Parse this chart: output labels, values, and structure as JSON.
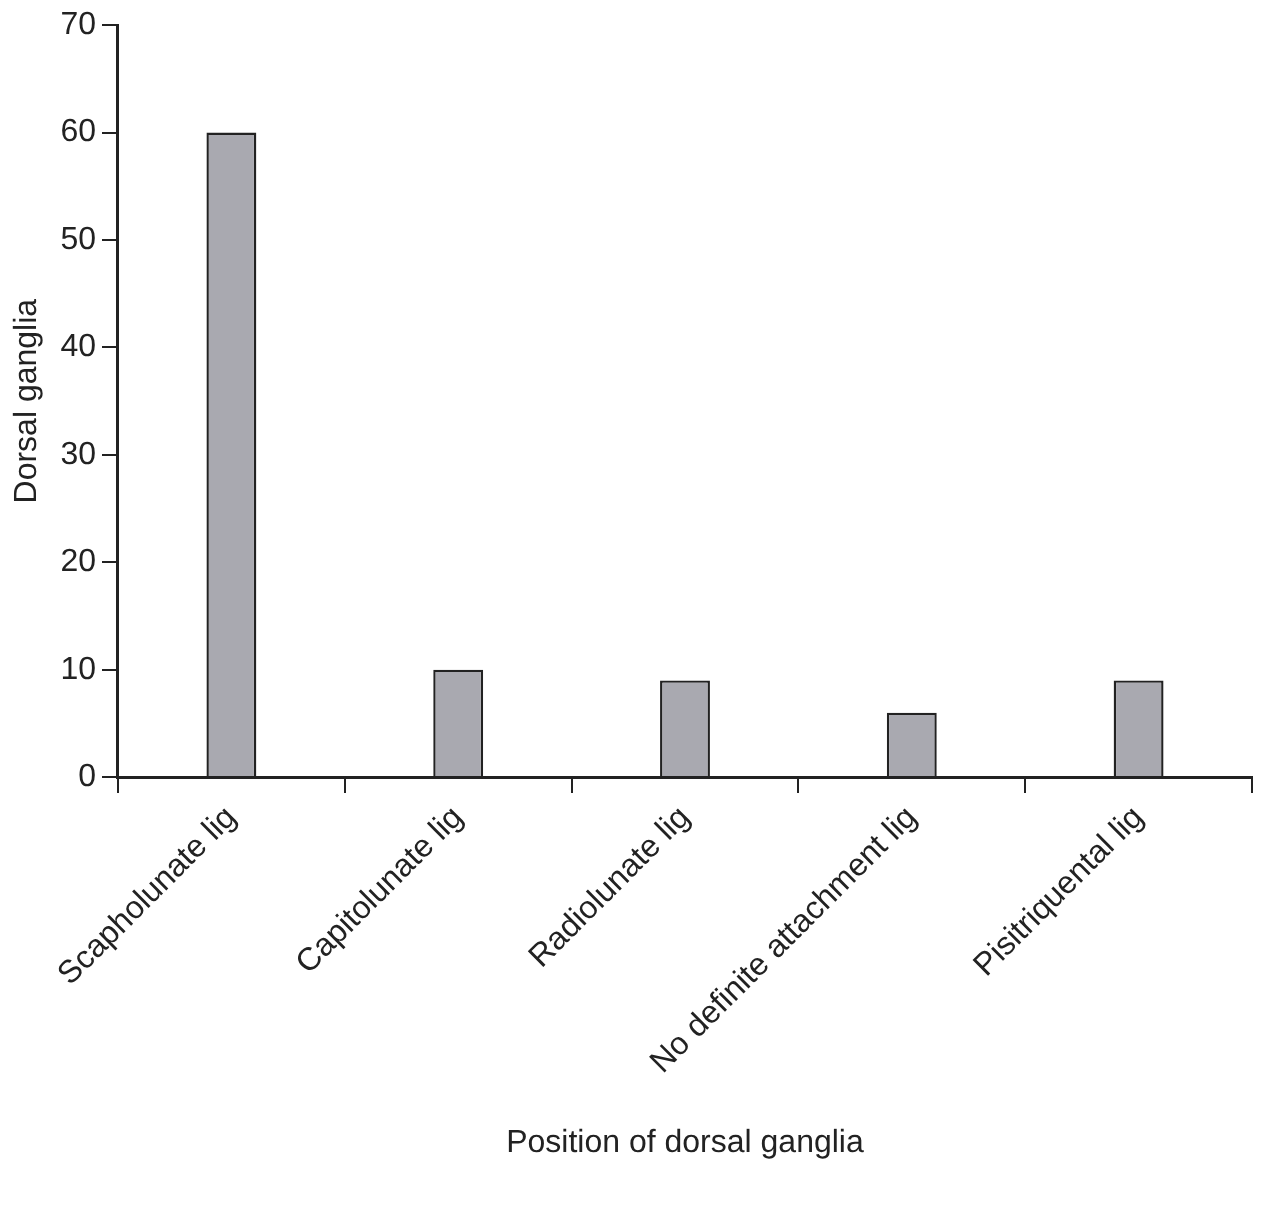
{
  "chart_data": {
    "type": "bar",
    "xlabel": "Position of dorsal ganglia",
    "ylabel": "Dorsal ganglia",
    "categories": [
      "Scapholunate lig",
      "Capitolunate lig",
      "Radiolunate lig",
      "No definite attachment lig",
      "Pisitriquental lig"
    ],
    "values": [
      60,
      10,
      9,
      6,
      9
    ],
    "color": "#a9a9b0",
    "ylim": [
      0,
      70
    ],
    "yticks": [
      0,
      10,
      20,
      30,
      40,
      50,
      60,
      70
    ],
    "grid": false
  }
}
